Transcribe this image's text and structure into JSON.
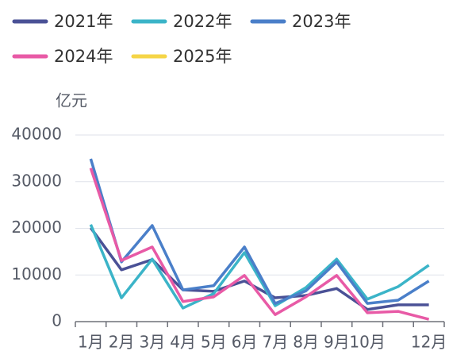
{
  "chart_data": {
    "type": "line",
    "y_axis_label": "亿元",
    "categories": [
      "1月",
      "2月",
      "3月",
      "4月",
      "5月",
      "6月",
      "7月",
      "8月",
      "9月",
      "10月",
      null,
      "12月"
    ],
    "series": [
      {
        "name": "2021年",
        "color": "#4a5196",
        "values": [
          20100,
          11100,
          13300,
          6800,
          6500,
          8700,
          5100,
          5600,
          7100,
          2600,
          3600,
          3600
        ]
      },
      {
        "name": "2022年",
        "color": "#3bb4c8",
        "values": [
          20800,
          5100,
          13400,
          2900,
          6000,
          14800,
          3400,
          7300,
          13400,
          4800,
          7500,
          12100
        ]
      },
      {
        "name": "2023年",
        "color": "#4a7fc9",
        "values": [
          34900,
          12800,
          20600,
          6800,
          7700,
          16000,
          3900,
          6600,
          12800,
          3900,
          4600,
          8700
        ]
      },
      {
        "name": "2024年",
        "color": "#e85aa6",
        "values": [
          32900,
          13100,
          16000,
          4300,
          5300,
          9900,
          1500,
          5300,
          9900,
          1900,
          2200,
          500
        ]
      },
      {
        "name": "2025年",
        "color": "#f5d547",
        "values": [
          null,
          null,
          null,
          null,
          null,
          null,
          null,
          null,
          null,
          null,
          null,
          null
        ]
      }
    ],
    "ylim": [
      0,
      40000
    ],
    "yticks": [
      0,
      10000,
      20000,
      30000,
      40000
    ],
    "grid": true
  }
}
